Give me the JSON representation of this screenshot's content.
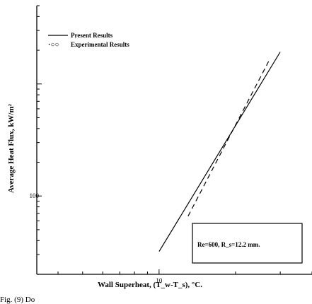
{
  "chart_data": {
    "type": "line",
    "xscale": "log",
    "yscale": "log",
    "xlim": [
      3.3,
      40
    ],
    "ylim": [
      20,
      5000
    ],
    "x_tick_labels": [
      "10"
    ],
    "y_tick_labels": [
      "100"
    ],
    "xlabel": "Wall Superheat, (T_w-T_s), °C.",
    "ylabel": "Average Heat Flux, kW/m²",
    "x_tick_values": [
      10
    ],
    "y_tick_values": [
      100
    ],
    "legend": {
      "placement": "top-left",
      "entries": [
        "Present Results",
        "Experimental Results"
      ]
    },
    "annotation": "Re=600,  R_s=12.2 mm.",
    "caption_fragment": "Fig. (9) Do",
    "series": [
      {
        "name": "Present Results",
        "style": "solid",
        "x": [
          10,
          30
        ],
        "y": [
          32,
          1930
        ]
      },
      {
        "name": "Experimental Results",
        "style": "dashed",
        "x": [
          13,
          27
        ],
        "y": [
          66,
          1590
        ]
      }
    ],
    "grid": false
  }
}
